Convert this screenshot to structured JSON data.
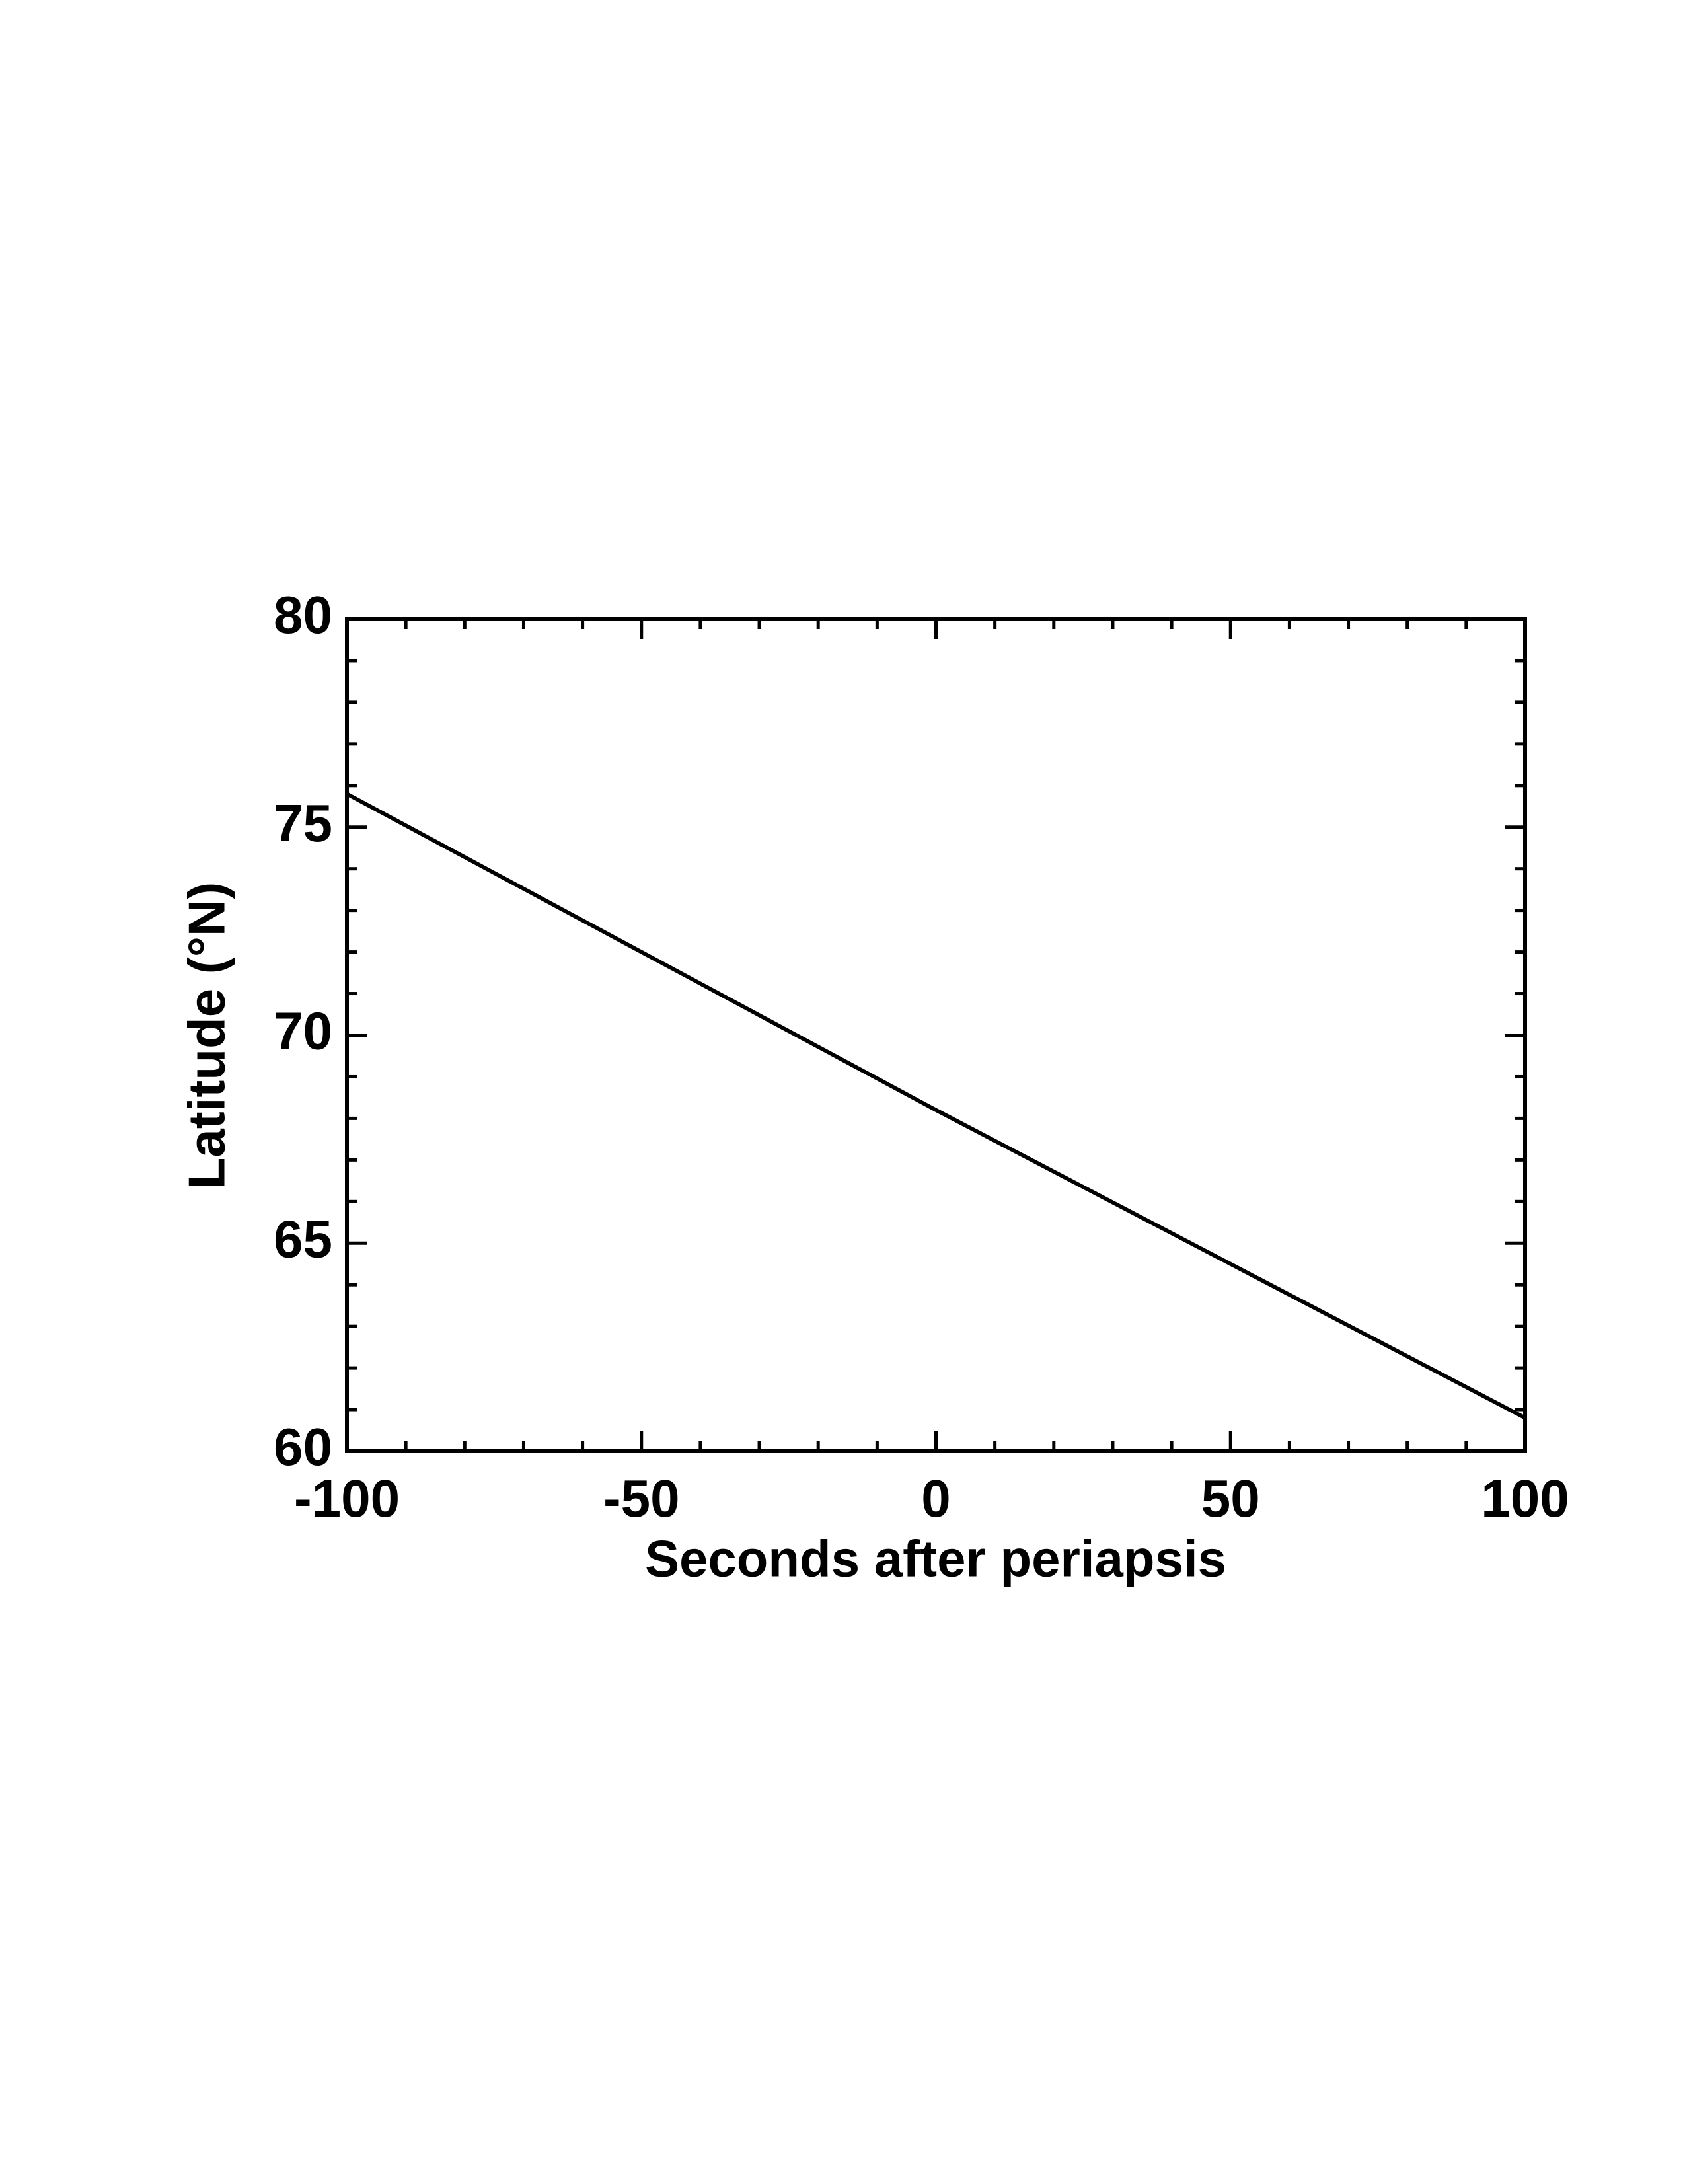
{
  "chart_data": {
    "type": "line",
    "x_label": "Seconds after periapsis",
    "y_label": "Latitude (°N)",
    "x": [
      -100,
      0,
      100
    ],
    "values": [
      75.8,
      68.2,
      60.8
    ],
    "color": "#000000",
    "xlim": [
      -100,
      100
    ],
    "xticks": [
      -100,
      -50,
      0,
      50,
      100
    ],
    "ylim": [
      60,
      80
    ],
    "yticks": [
      60,
      65,
      70,
      75,
      80
    ],
    "grid": false
  }
}
